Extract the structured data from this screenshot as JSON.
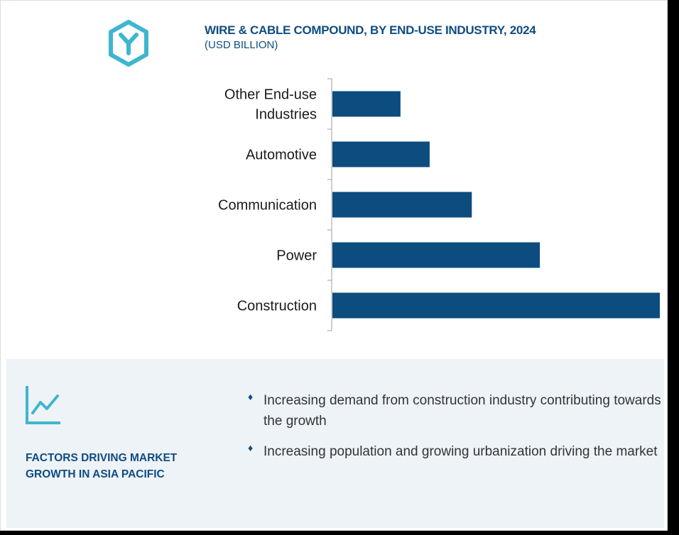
{
  "header": {
    "title": "WIRE & CABLE COMPOUND,  BY END-USE INDUSTRY, 2024",
    "subtitle": "(USD BILLION)",
    "logo_icon": "y-hexagon-logo-icon"
  },
  "colors": {
    "bar": "#0d4c7f",
    "accent": "#3fb6cf",
    "title": "#0f4c81",
    "panel": "#eef3f8"
  },
  "chart_data": {
    "type": "bar",
    "orientation": "horizontal",
    "title": "WIRE & CABLE COMPOUND,  BY END-USE INDUSTRY, 2024",
    "subtitle": "(USD BILLION)",
    "categories": [
      "Other End-use Industries",
      "Automotive",
      "Communication",
      "Power",
      "Construction"
    ],
    "category_lines": [
      [
        "Other End-use",
        "Industries"
      ],
      [
        "Automotive"
      ],
      [
        "Communication"
      ],
      [
        "Power"
      ],
      [
        "Construction"
      ]
    ],
    "values": [
      2.1,
      3.0,
      4.3,
      6.4,
      10.1
    ],
    "xlim": [
      0,
      10.1
    ],
    "value_labels_shown": false,
    "grid": false,
    "legend": "none"
  },
  "factors": {
    "icon": "trend-chart-icon",
    "title": "FACTORS DRIVING MARKET GROWTH IN ASIA PACIFIC",
    "bullets": [
      {
        "icon": "diamond-bullet-icon",
        "text": "Increasing demand from construction industry contributing towards the growth"
      },
      {
        "icon": "diamond-bullet-icon",
        "text": "Increasing population and growing urbanization driving the market"
      }
    ]
  }
}
